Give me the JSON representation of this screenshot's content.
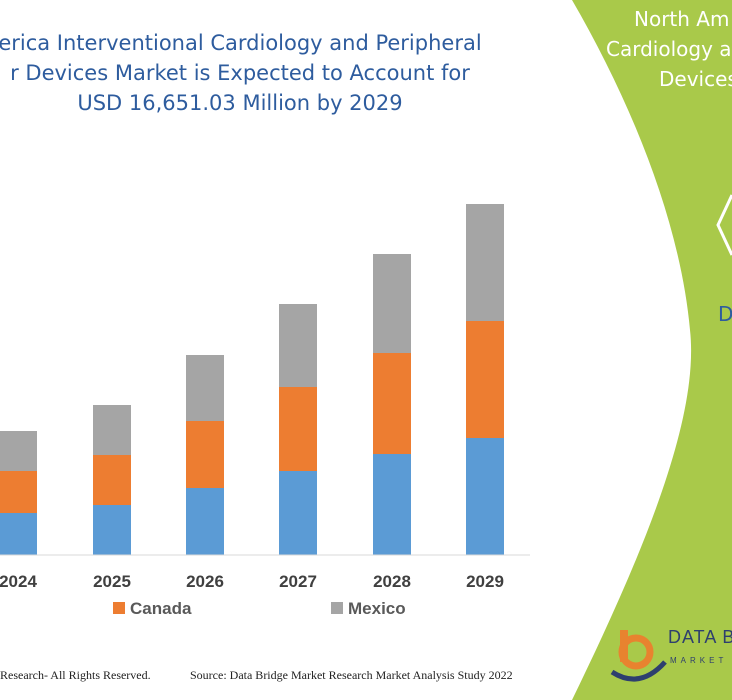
{
  "title_lines": [
    "erica Interventional Cardiology and Peripheral",
    "r Devices Market is Expected to Account for",
    "USD 16,651.03 Million by 2029"
  ],
  "side_panel": {
    "lines": [
      "North Am",
      "Cardiology a",
      "Devices"
    ],
    "partial_text": "D"
  },
  "footer": {
    "left": "Research- All Rights Reserved.",
    "right": "Source: Data Bridge Market Research Market Analysis Study 2022"
  },
  "logo": {
    "name": "DATA B",
    "sub": "MARKET"
  },
  "colors": {
    "us": "#5b9bd5",
    "canada": "#ed7d31",
    "mexico": "#a5a5a5",
    "panel": "#a9c94a",
    "title": "#2e5c9e"
  },
  "chart_data": {
    "type": "bar",
    "stacked": true,
    "categories": [
      "2024",
      "2025",
      "2026",
      "2027",
      "2028",
      "2029"
    ],
    "series": [
      {
        "name": "",
        "values": [
          42,
          50,
          67,
          84,
          101,
          117
        ]
      },
      {
        "name": "Canada",
        "values": [
          42,
          50,
          67,
          84,
          101,
          117
        ]
      },
      {
        "name": "Mexico",
        "values": [
          40,
          50,
          66,
          83,
          99,
          117
        ]
      }
    ],
    "legend": [
      "Canada",
      "Mexico"
    ],
    "legend_position": "bottom",
    "grid": false
  }
}
